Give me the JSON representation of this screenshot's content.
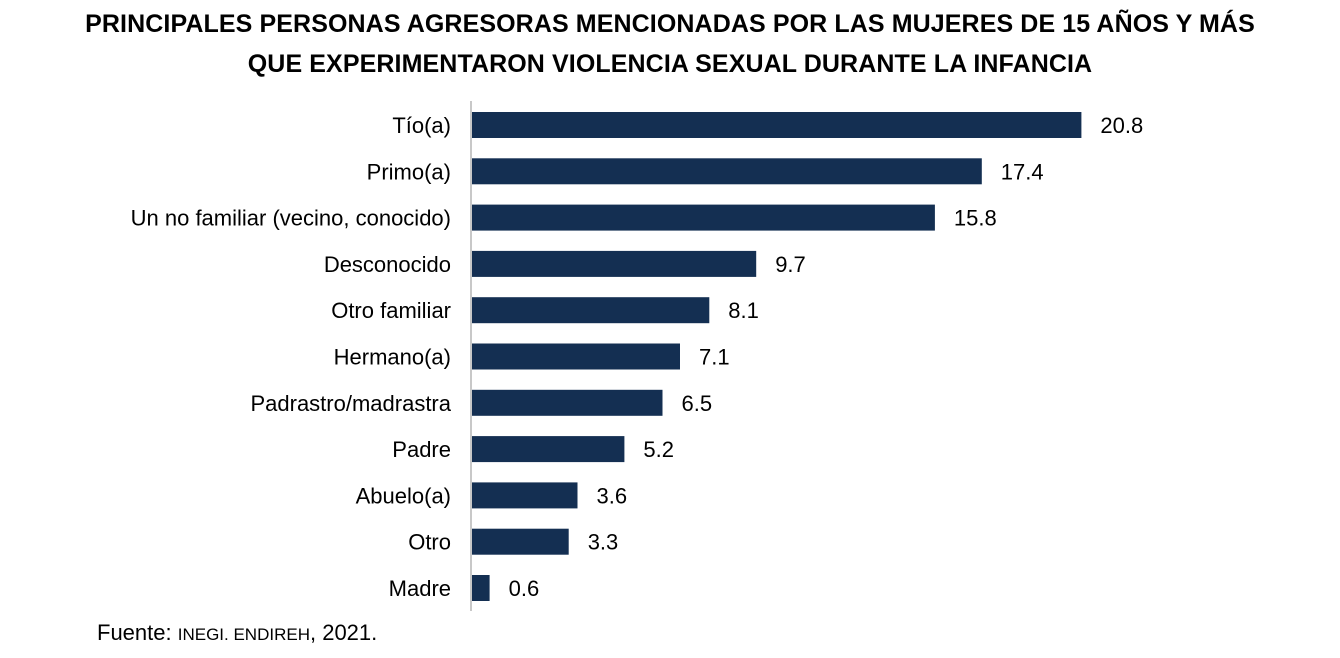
{
  "title": {
    "line1": "PRINCIPALES PERSONAS AGRESORAS MENCIONADAS POR LAS MUJERES DE 15 AÑOS Y MÁS",
    "line2": "QUE EXPERIMENTARON VIOLENCIA SEXUAL DURANTE LA INFANCIA"
  },
  "source": {
    "prefix": "Fuente:",
    "org": "INEGI. ENDIREH",
    "year": ", 2021."
  },
  "colors": {
    "bar": "#142f52",
    "axis": "#c8c8c8"
  },
  "chart_data": {
    "type": "bar",
    "orientation": "horizontal",
    "title": "PRINCIPALES PERSONAS AGRESORAS MENCIONADAS POR LAS MUJERES DE 15 AÑOS Y MÁS QUE EXPERIMENTARON VIOLENCIA SEXUAL DURANTE LA INFANCIA",
    "xlabel": "",
    "ylabel": "",
    "categories": [
      "Tío(a)",
      "Primo(a)",
      "Un no familiar (vecino, conocido)",
      "Desconocido",
      "Otro familiar",
      "Hermano(a)",
      "Padrastro/madrastra",
      "Padre",
      "Abuelo(a)",
      "Otro",
      "Madre"
    ],
    "values": [
      20.8,
      17.4,
      15.8,
      9.7,
      8.1,
      7.1,
      6.5,
      5.2,
      3.6,
      3.3,
      0.6
    ],
    "value_labels": [
      "20.8",
      "17.4",
      "15.8",
      "9.7",
      "8.1",
      "7.1",
      "6.5",
      "5.2",
      "3.6",
      "3.3",
      "0.6"
    ],
    "xlim": [
      0,
      22
    ],
    "grid": false,
    "legend": "none"
  }
}
